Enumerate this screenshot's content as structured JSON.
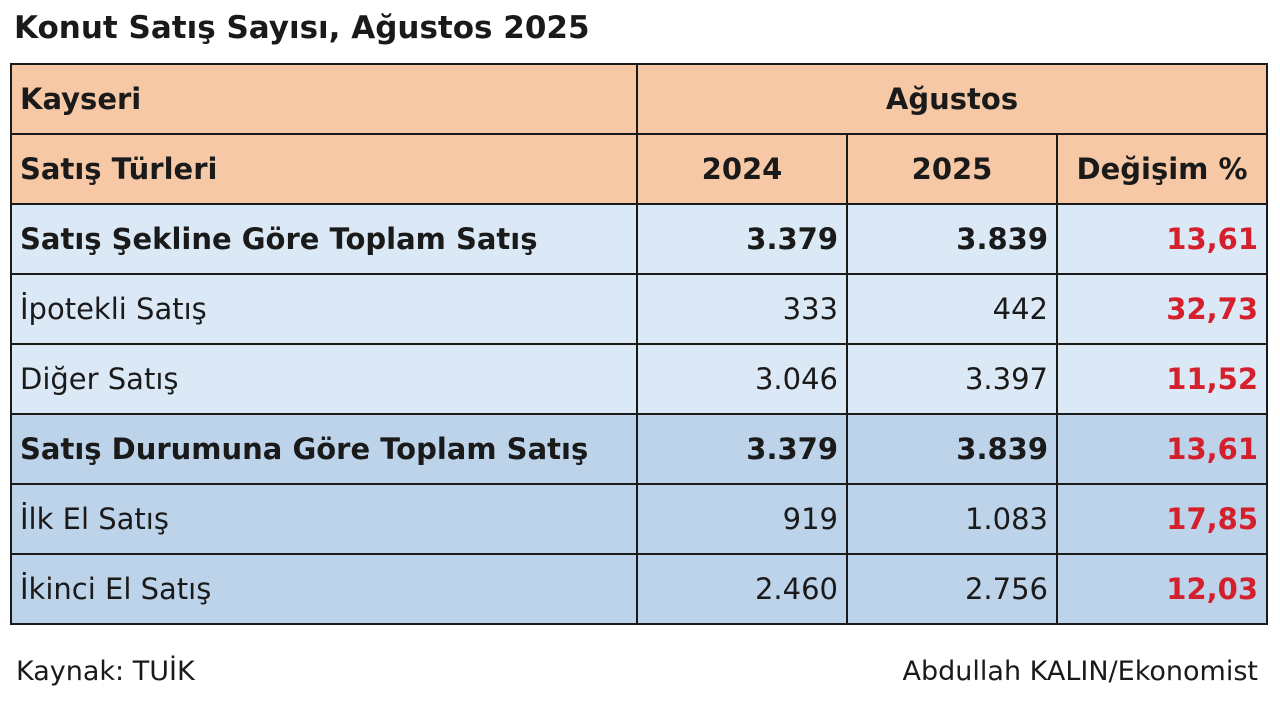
{
  "title": "Konut Satış Sayısı, Ağustos 2025",
  "table": {
    "region": "Kayseri",
    "period": "Ağustos",
    "col_label": "Satış Türleri",
    "col_2024": "2024",
    "col_2025": "2025",
    "col_change": "Değişim %",
    "rows": [
      {
        "label": "Satış Şekline Göre Toplam Satış",
        "v2024": "3.379",
        "v2025": "3.839",
        "change": "13,61"
      },
      {
        "label": "İpotekli Satış",
        "v2024": "333",
        "v2025": "442",
        "change": "32,73"
      },
      {
        "label": "Diğer Satış",
        "v2024": "3.046",
        "v2025": "3.397",
        "change": "11,52"
      },
      {
        "label": "Satış Durumuna Göre Toplam Satış",
        "v2024": "3.379",
        "v2025": "3.839",
        "change": "13,61"
      },
      {
        "label": "İlk El Satış",
        "v2024": "919",
        "v2025": "1.083",
        "change": "17,85"
      },
      {
        "label": "İkinci El Satış",
        "v2024": "2.460",
        "v2025": "2.756",
        "change": "12,03"
      }
    ]
  },
  "footer": {
    "source": "Kaynak: TUİK",
    "author": "Abdullah KALIN/Ekonomist"
  },
  "colors": {
    "header_bg": "#f7c8a6",
    "group1_bg": "#dbe8f5",
    "group2_bg": "#bdd3ea",
    "change_text": "#d4202c"
  }
}
